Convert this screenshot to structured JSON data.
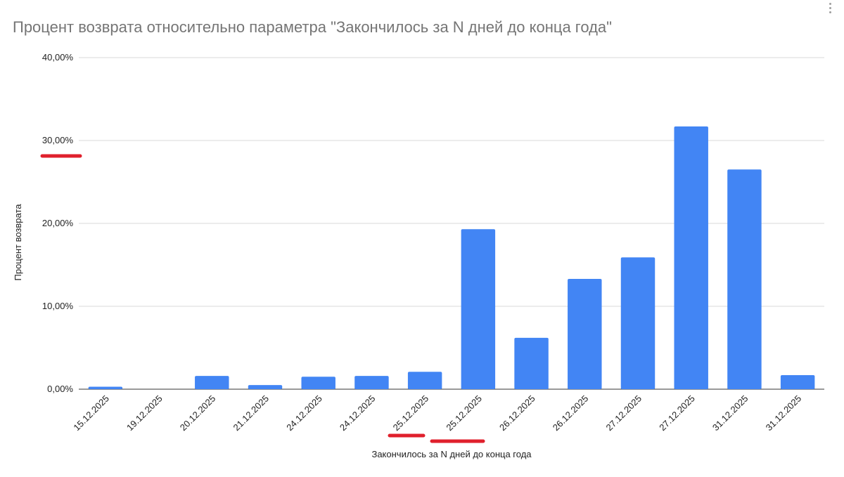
{
  "chart_data": {
    "type": "bar",
    "title": "Процент возврата относительно параметра \"Закончилось за N дней до конца года\"",
    "xlabel": "Закончилось за N дней до конца года",
    "ylabel": "Процент возврата",
    "ylim": [
      0,
      40
    ],
    "yticks": [
      "0,00%",
      "10,00%",
      "20,00%",
      "30,00%",
      "40,00%"
    ],
    "grid": true,
    "categories": [
      "15.12.2025",
      "19.12.2025",
      "20.12.2025",
      "21.12.2025",
      "24.12.2025",
      "24.12.2025",
      "25.12.2025",
      "25.12.2025",
      "26.12.2025",
      "26.12.2025",
      "27.12.2025",
      "27.12.2025",
      "31.12.2025",
      "31.12.2025"
    ],
    "series": [
      {
        "values": [
          0.3,
          0.0,
          1.6,
          0.5,
          1.5,
          1.6,
          2.1,
          19.3,
          6.2,
          13.3,
          15.9,
          31.7,
          26.5,
          1.7
        ]
      }
    ],
    "bar_color": "#4285f4",
    "annotation_color": "#e0202c",
    "annotations": [
      {
        "type": "underline",
        "target": "y-tick",
        "index": 3
      },
      {
        "type": "underline",
        "target": "x-tick",
        "index": 6
      },
      {
        "type": "underline",
        "target": "x-tick",
        "index": 7
      }
    ]
  }
}
